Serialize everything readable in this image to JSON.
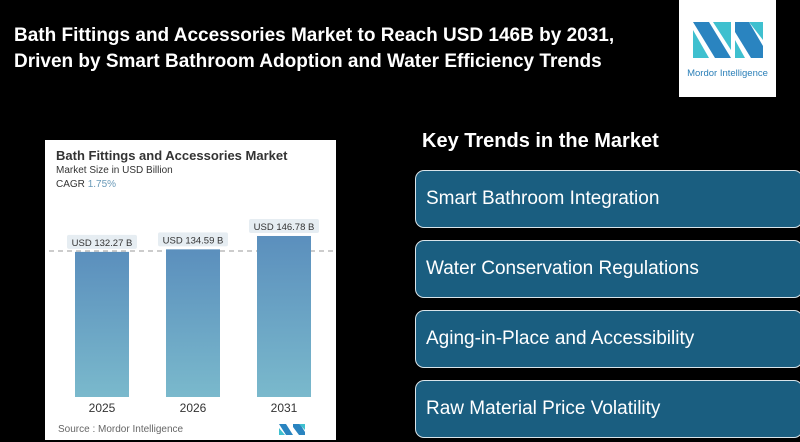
{
  "header": {
    "title_line1": "Bath Fittings and Accessories Market to Reach USD 146B by 2031,",
    "title_line2": "Driven by Smart Bathroom Adoption and Water Efficiency Trends"
  },
  "logo": {
    "text": "Mordor Intelligence"
  },
  "card": {
    "title": "Bath Fittings and Accessories Market",
    "subtitle": "Market Size in USD Billion",
    "cagr_label": "CAGR",
    "cagr_value": "1.75%",
    "source": "Source :  Mordor Intelligence"
  },
  "trends": {
    "heading": "Key Trends in the Market",
    "items": [
      "Smart Bathroom Integration",
      "Water Conservation Regulations",
      "Aging-in-Place and Accessibility",
      "Raw Material Price Volatility"
    ]
  },
  "colors": {
    "bar_top": "#5b8fbd",
    "bar_bottom": "#7ab9cc",
    "trend_box": "#1a5e80"
  },
  "chart_data": {
    "type": "bar",
    "title": "Bath Fittings and Accessories Market",
    "ylabel": "Market Size in USD Billion",
    "categories": [
      "2025",
      "2026",
      "2031"
    ],
    "values": [
      132.27,
      134.59,
      146.78
    ],
    "labels": [
      "USD 132.27 B",
      "USD 134.59 B",
      "USD 146.78 B"
    ],
    "ylim": [
      0,
      160
    ]
  }
}
